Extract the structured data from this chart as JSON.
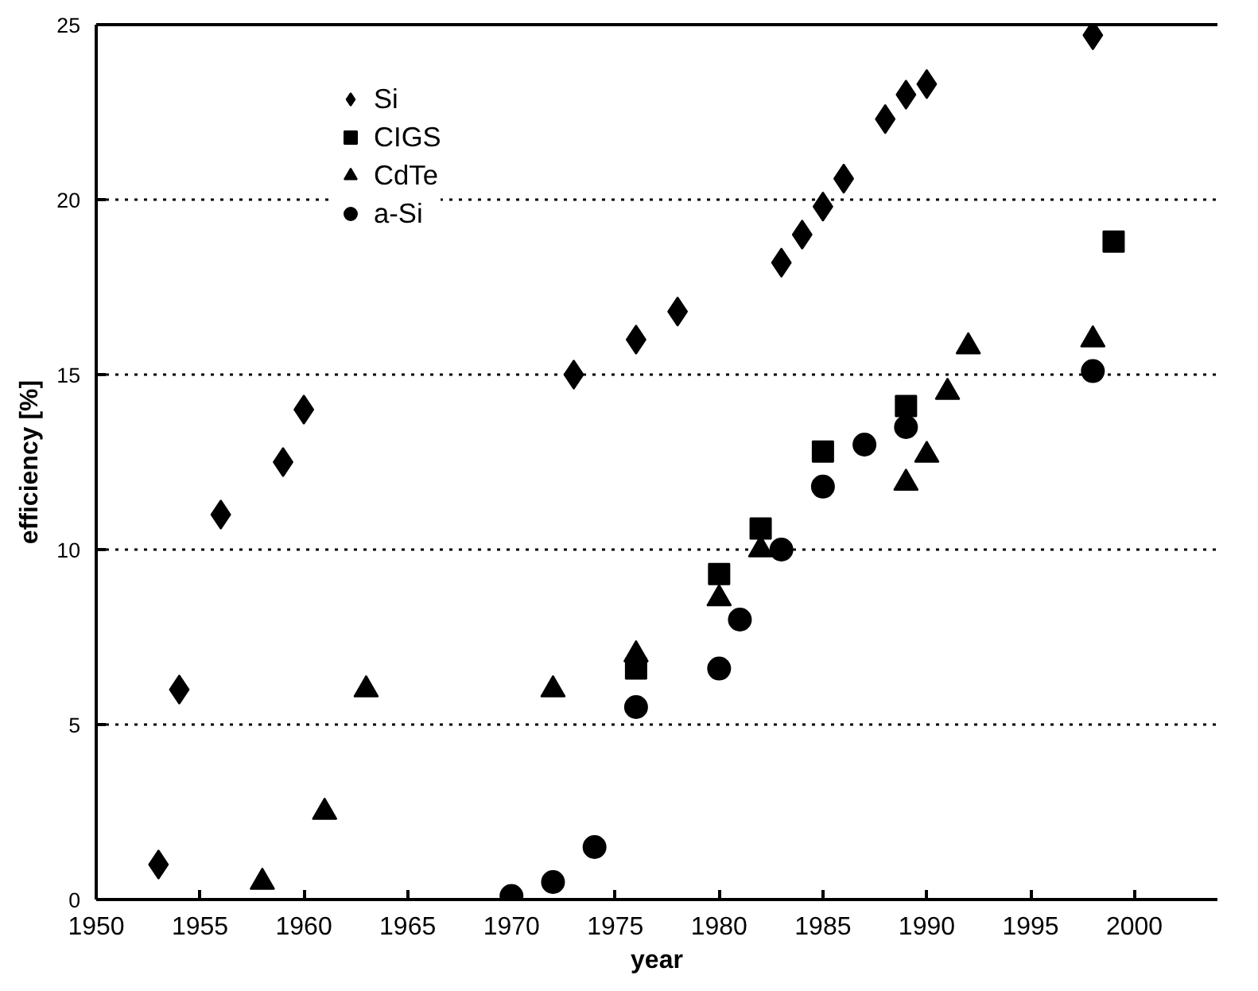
{
  "chart_data": {
    "type": "scatter",
    "xlabel": "year",
    "ylabel": "efficiency [%]",
    "xlim": [
      1950,
      2004
    ],
    "xticks": [
      1950,
      1955,
      1960,
      1965,
      1970,
      1975,
      1980,
      1985,
      1990,
      1995,
      2000
    ],
    "ylim": [
      0,
      25
    ],
    "yticks": [
      0,
      5,
      10,
      15,
      20,
      25
    ],
    "grid": "y",
    "legend": "top left",
    "series": [
      {
        "name": "Si",
        "color": "#000000",
        "marker": "diamond",
        "x": [
          1953,
          1954,
          1956,
          1959,
          1960,
          1973,
          1976,
          1978,
          1983,
          1984,
          1985,
          1986,
          1988,
          1989,
          1990,
          1998
        ],
        "values": [
          1,
          6,
          11,
          12.5,
          14,
          15,
          16,
          16.8,
          18.2,
          19,
          19.8,
          20.6,
          22.3,
          23,
          23.3,
          24.7
        ]
      },
      {
        "name": "CIGS",
        "color": "#000000",
        "marker": "square",
        "x": [
          1976,
          1980,
          1982,
          1985,
          1989,
          1999
        ],
        "values": [
          6.6,
          9.3,
          10.6,
          12.8,
          14.1,
          18.8
        ]
      },
      {
        "name": "CdTe",
        "color": "#000000",
        "marker": "triangle",
        "x": [
          1958,
          1961,
          1963,
          1972,
          1976,
          1980,
          1982,
          1989,
          1990,
          1991,
          1992,
          1998
        ],
        "values": [
          0.5,
          2.5,
          6,
          6,
          7,
          8.6,
          10,
          11.9,
          12.7,
          14.5,
          15.8,
          16
        ]
      },
      {
        "name": "a-Si",
        "color": "#000000",
        "marker": "circle",
        "x": [
          1970,
          1972,
          1974,
          1976,
          1980,
          1981,
          1983,
          1985,
          1987,
          1989,
          1998
        ],
        "values": [
          0.1,
          0.5,
          1.5,
          5.5,
          6.6,
          8,
          10,
          11.8,
          13,
          13.5,
          15.1
        ]
      }
    ]
  }
}
